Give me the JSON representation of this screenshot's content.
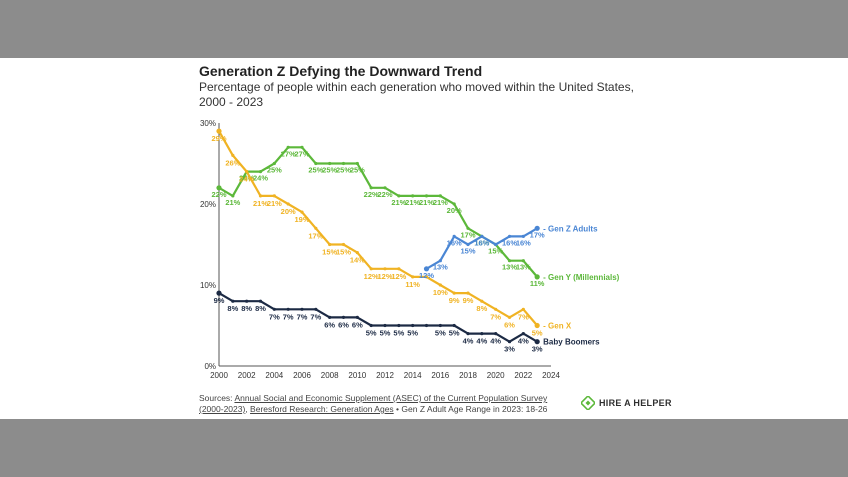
{
  "chart_data": {
    "type": "line",
    "title": "Generation Z Defying the Downward Trend",
    "subtitle": "Percentage of people within each generation who moved within the United States, 2000 - 2023",
    "xlim": [
      2000,
      2024
    ],
    "ylim": [
      0,
      30
    ],
    "x_ticks": [
      2000,
      2002,
      2004,
      2006,
      2008,
      2010,
      2012,
      2014,
      2016,
      2018,
      2020,
      2022,
      2024
    ],
    "y_ticks": [
      {
        "v": 0,
        "label": "0%"
      },
      {
        "v": 10,
        "label": "10%"
      },
      {
        "v": 20,
        "label": "20%"
      },
      {
        "v": 30,
        "label": "30%"
      }
    ],
    "grid": false,
    "series": [
      {
        "name": "Gen Y (Millennials)",
        "legend_label": "- Gen Y (Millennials)",
        "color": "#5cb83a",
        "x": [
          2000,
          2001,
          2002,
          2003,
          2004,
          2005,
          2006,
          2007,
          2008,
          2009,
          2010,
          2011,
          2012,
          2013,
          2014,
          2015,
          2016,
          2017,
          2018,
          2019,
          2020,
          2021,
          2022,
          2023
        ],
        "values": [
          22.0,
          21.0,
          24.0,
          24.0,
          25.0,
          27.0,
          27.0,
          25.0,
          25.0,
          25.0,
          25.0,
          22.0,
          22.0,
          21.0,
          21.0,
          21.0,
          21.0,
          20.0,
          17.0,
          16.0,
          15.0,
          13.0,
          13.0,
          11.0
        ],
        "labels": [
          "22%",
          "21%",
          "24%",
          "24%",
          "25%",
          "27%",
          "27%",
          "25%",
          "25%",
          "25%",
          "25%",
          "22%",
          "22%",
          "21%",
          "21%",
          "21%",
          "21%",
          "20%",
          "17%",
          "16%",
          "15%",
          "13%",
          "13%",
          "11%"
        ]
      },
      {
        "name": "Gen X",
        "legend_label": "- Gen X",
        "color": "#f0b323",
        "x": [
          2000,
          2001,
          2002,
          2003,
          2004,
          2005,
          2006,
          2007,
          2008,
          2009,
          2010,
          2011,
          2012,
          2013,
          2014,
          2015,
          2016,
          2017,
          2018,
          2019,
          2020,
          2021,
          2022,
          2023
        ],
        "values": [
          29.0,
          26.0,
          24.0,
          21.0,
          21.0,
          20.0,
          19.0,
          17.0,
          15.0,
          15.0,
          14.0,
          12.0,
          12.0,
          12.0,
          11.0,
          11.0,
          10.0,
          9.0,
          9.0,
          8.0,
          7.0,
          6.0,
          7.0,
          5.0
        ],
        "labels": [
          "29%",
          "26%",
          "24%",
          "21%",
          "21%",
          "20%",
          "19%",
          "17%",
          "15%",
          "15%",
          "14%",
          "12%",
          "12%",
          "12%",
          "11%",
          "",
          "10%",
          "9%",
          "9%",
          "8%",
          "7%",
          "6%",
          "7%",
          "5%"
        ]
      },
      {
        "name": "Gen Z Adults",
        "legend_label": "- Gen Z Adults",
        "color": "#4a86d4",
        "x": [
          2015,
          2016,
          2017,
          2018,
          2019,
          2020,
          2021,
          2022,
          2023
        ],
        "values": [
          12.0,
          13.0,
          16.0,
          15.0,
          16.0,
          15.0,
          16.0,
          16.0,
          17.0
        ],
        "labels": [
          "12%",
          "13%",
          "16%",
          "15%",
          "16%",
          "",
          "16%",
          "16%",
          "17%"
        ]
      },
      {
        "name": "Baby Boomers",
        "legend_label": "Baby Boomers",
        "color": "#1c2a44",
        "x": [
          2000,
          2001,
          2002,
          2003,
          2004,
          2005,
          2006,
          2007,
          2008,
          2009,
          2010,
          2011,
          2012,
          2013,
          2014,
          2015,
          2016,
          2017,
          2018,
          2019,
          2020,
          2021,
          2022,
          2023
        ],
        "values": [
          9.0,
          8.0,
          8.0,
          8.0,
          7.0,
          7.0,
          7.0,
          7.0,
          6.0,
          6.0,
          6.0,
          5.0,
          5.0,
          5.0,
          5.0,
          5.0,
          5.0,
          5.0,
          4.0,
          4.0,
          4.0,
          3.0,
          4.0,
          3.0
        ],
        "labels": [
          "9%",
          "8%",
          "8%",
          "8%",
          "7%",
          "7%",
          "7%",
          "7%",
          "6%",
          "6%",
          "6%",
          "5%",
          "5%",
          "5%",
          "5%",
          "",
          "5%",
          "5%",
          "4%",
          "4%",
          "4%",
          "3%",
          "4%",
          "3%"
        ]
      }
    ]
  },
  "footer": {
    "sources_prefix": "Sources: ",
    "source_link_1": "Annual Social and Economic Supplement (ASEC) of the Current Population Survey (2000-2023)",
    "separator": ", ",
    "source_link_2": "Beresford Research: Generation Ages",
    "note": " • Gen Z Adult Age Range in 2023: 18-26",
    "brand": "HIRE A HELPER",
    "brand_color": "#5cb83a"
  }
}
